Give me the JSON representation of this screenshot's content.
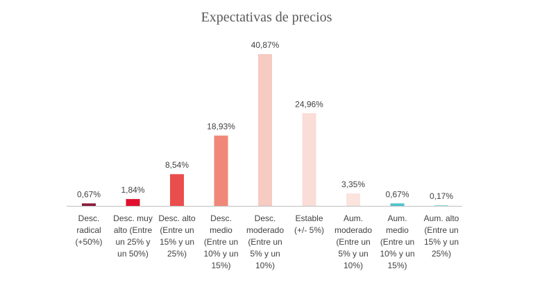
{
  "chart_data": {
    "type": "bar",
    "title": "Expectativas de precios",
    "categories": [
      [
        "Desc.",
        "radical",
        "(+50%)"
      ],
      [
        "Desc. muy",
        "alto (Entre",
        "un 25% y",
        "un 50%)"
      ],
      [
        "Desc. alto",
        "(Entre un",
        "15% y un",
        "25%)"
      ],
      [
        "Desc.",
        "medio",
        "(Entre un",
        "10% y un",
        "15%)"
      ],
      [
        "Desc.",
        "moderado",
        "(Entre un",
        "5% y un",
        "10%)"
      ],
      [
        "Estable",
        "(+/- 5%)"
      ],
      [
        "Aum.",
        "moderado",
        "(Entre un",
        "5% y un",
        "10%)"
      ],
      [
        "Aum.",
        "medio",
        "(Entre un",
        "10% y un",
        "15%)"
      ],
      [
        "Aum. alto",
        "(Entre un",
        "15% y un",
        "25%)"
      ]
    ],
    "values": [
      0.67,
      1.84,
      8.54,
      18.93,
      40.87,
      24.96,
      3.35,
      0.67,
      0.17
    ],
    "data_labels": [
      "0,67%",
      "1,84%",
      "8,54%",
      "18,93%",
      "40,87%",
      "24,96%",
      "3,35%",
      "0,67%",
      "0,17%"
    ],
    "colors": [
      "#8b1a3a",
      "#e0102e",
      "#ea4e4c",
      "#ef8878",
      "#f6cbc1",
      "#f9ddd6",
      "#fbe3de",
      "#4dc3cc",
      "#8fd9dd"
    ],
    "ylim": [
      0,
      42
    ],
    "grid": false,
    "legend": "none"
  }
}
